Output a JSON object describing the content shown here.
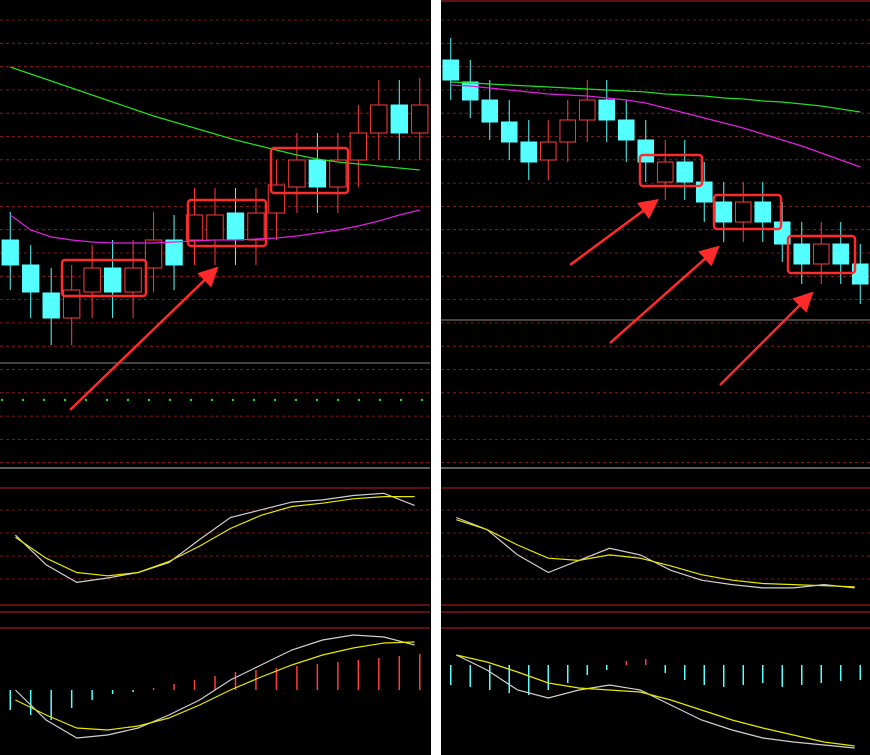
{
  "chart_data": [
    {
      "type": "candlestick",
      "up_color": "#ff3c3c",
      "down_color": "#54ffff",
      "ylim": [
        0,
        360
      ],
      "open": [
        120,
        95,
        67,
        42,
        68,
        92,
        68,
        92,
        120,
        120,
        120,
        147,
        120,
        147,
        173,
        200,
        173,
        200,
        227,
        255,
        227
      ],
      "close": [
        95,
        68,
        42,
        70,
        92,
        68,
        92,
        120,
        95,
        145,
        145,
        120,
        147,
        175,
        200,
        173,
        200,
        227,
        255,
        227,
        255
      ],
      "high": [
        148,
        115,
        92,
        95,
        115,
        120,
        120,
        148,
        145,
        172,
        172,
        172,
        172,
        200,
        227,
        227,
        227,
        255,
        280,
        280,
        282
      ],
      "low": [
        70,
        42,
        15,
        15,
        42,
        42,
        42,
        68,
        70,
        95,
        95,
        95,
        95,
        120,
        147,
        147,
        147,
        173,
        200,
        200,
        200
      ],
      "series": [
        {
          "color": "#22dd22",
          "values": [
            293,
            286,
            279,
            272,
            265,
            258,
            251,
            244,
            238,
            232,
            226,
            220,
            215,
            210,
            205,
            201,
            198,
            196,
            194,
            192,
            190
          ]
        },
        {
          "color": "#e020e0",
          "values": [
            145,
            130,
            123,
            120,
            118,
            117,
            117,
            117,
            118,
            119,
            120,
            120,
            121,
            122,
            124,
            127,
            130,
            134,
            139,
            145,
            150
          ]
        }
      ]
    },
    {
      "type": "line",
      "ylim": [
        0,
        100
      ],
      "series": [
        {
          "color": "#d0d0d0",
          "values": [
            59,
            32,
            16,
            20,
            25,
            34,
            55,
            75,
            82,
            89,
            91,
            95,
            97,
            86
          ]
        },
        {
          "color": "#e8e800",
          "values": [
            57,
            38,
            25,
            22,
            25,
            35,
            49,
            65,
            77,
            85,
            88,
            92,
            94,
            94
          ]
        }
      ]
    },
    {
      "type": "macd",
      "ylim": [
        -65,
        70
      ],
      "up_color": "#ff3c3c",
      "down_color": "#54ffff",
      "values": [
        -20,
        -25,
        -30,
        -18,
        -10,
        -4,
        -2,
        2,
        6,
        10,
        14,
        18,
        20,
        22,
        24,
        26,
        28,
        30,
        32,
        34,
        36
      ],
      "series": [
        {
          "color": "#d0d0d0",
          "values": [
            0,
            -30,
            -48,
            -45,
            -38,
            -25,
            -10,
            10,
            25,
            40,
            50,
            55,
            53,
            45
          ]
        },
        {
          "color": "#e8e800",
          "values": [
            -10,
            -25,
            -38,
            -40,
            -36,
            -28,
            -15,
            0,
            13,
            25,
            35,
            42,
            47,
            48
          ]
        }
      ]
    },
    {
      "type": "candlestick",
      "up_color": "#ff3c3c",
      "down_color": "#54ffff",
      "ylim": [
        0,
        360
      ],
      "open": [
        300,
        278,
        260,
        238,
        218,
        200,
        218,
        240,
        260,
        240,
        220,
        178,
        198,
        178,
        158,
        138,
        158,
        138,
        116,
        96,
        116,
        96
      ],
      "close": [
        280,
        260,
        238,
        218,
        198,
        218,
        240,
        260,
        240,
        220,
        198,
        198,
        178,
        158,
        138,
        158,
        138,
        116,
        96,
        116,
        96,
        76
      ],
      "high": [
        322,
        300,
        280,
        260,
        240,
        240,
        260,
        280,
        280,
        260,
        240,
        220,
        220,
        198,
        178,
        178,
        178,
        158,
        138,
        138,
        138,
        116
      ],
      "low": [
        260,
        242,
        220,
        200,
        180,
        180,
        198,
        218,
        218,
        198,
        178,
        160,
        160,
        138,
        118,
        118,
        118,
        98,
        76,
        76,
        76,
        56
      ],
      "series": [
        {
          "color": "#22dd22",
          "values": [
            278,
            277,
            276,
            275,
            274,
            273,
            272,
            271,
            270,
            269,
            268,
            266,
            265,
            264,
            262,
            261,
            259,
            258,
            256,
            254,
            251,
            248
          ]
        },
        {
          "color": "#e020e0",
          "values": [
            275,
            274,
            272,
            270,
            268,
            266,
            265,
            264,
            262,
            260,
            257,
            252,
            247,
            242,
            237,
            232,
            226,
            220,
            214,
            207,
            200,
            193
          ]
        }
      ]
    },
    {
      "type": "line",
      "ylim": [
        0,
        100
      ],
      "series": [
        {
          "color": "#d0d0d0",
          "values": [
            75,
            64,
            41,
            25,
            36,
            47,
            41,
            27,
            18,
            14,
            11,
            11,
            14,
            11
          ]
        },
        {
          "color": "#e8e800",
          "values": [
            73,
            64,
            50,
            38,
            36,
            41,
            38,
            31,
            23,
            18,
            15,
            14,
            13,
            12
          ]
        }
      ]
    },
    {
      "type": "macd",
      "ylim": [
        -90,
        50
      ],
      "up_color": "#ff3c3c",
      "down_color": "#54ffff",
      "values": [
        -20,
        -22,
        -25,
        -28,
        -30,
        -25,
        -18,
        -10,
        -5,
        4,
        6,
        -8,
        -15,
        -20,
        -22,
        -20,
        -18,
        -22,
        -20,
        -18,
        -16,
        -15
      ],
      "series": [
        {
          "color": "#d0d0d0",
          "values": [
            10,
            -5,
            -25,
            -33,
            -25,
            -20,
            -25,
            -40,
            -55,
            -65,
            -73,
            -77,
            -80,
            -83
          ]
        },
        {
          "color": "#e8e800",
          "values": [
            10,
            3,
            -7,
            -18,
            -23,
            -25,
            -27,
            -35,
            -45,
            -55,
            -63,
            -70,
            -77,
            -81
          ]
        }
      ]
    }
  ]
}
